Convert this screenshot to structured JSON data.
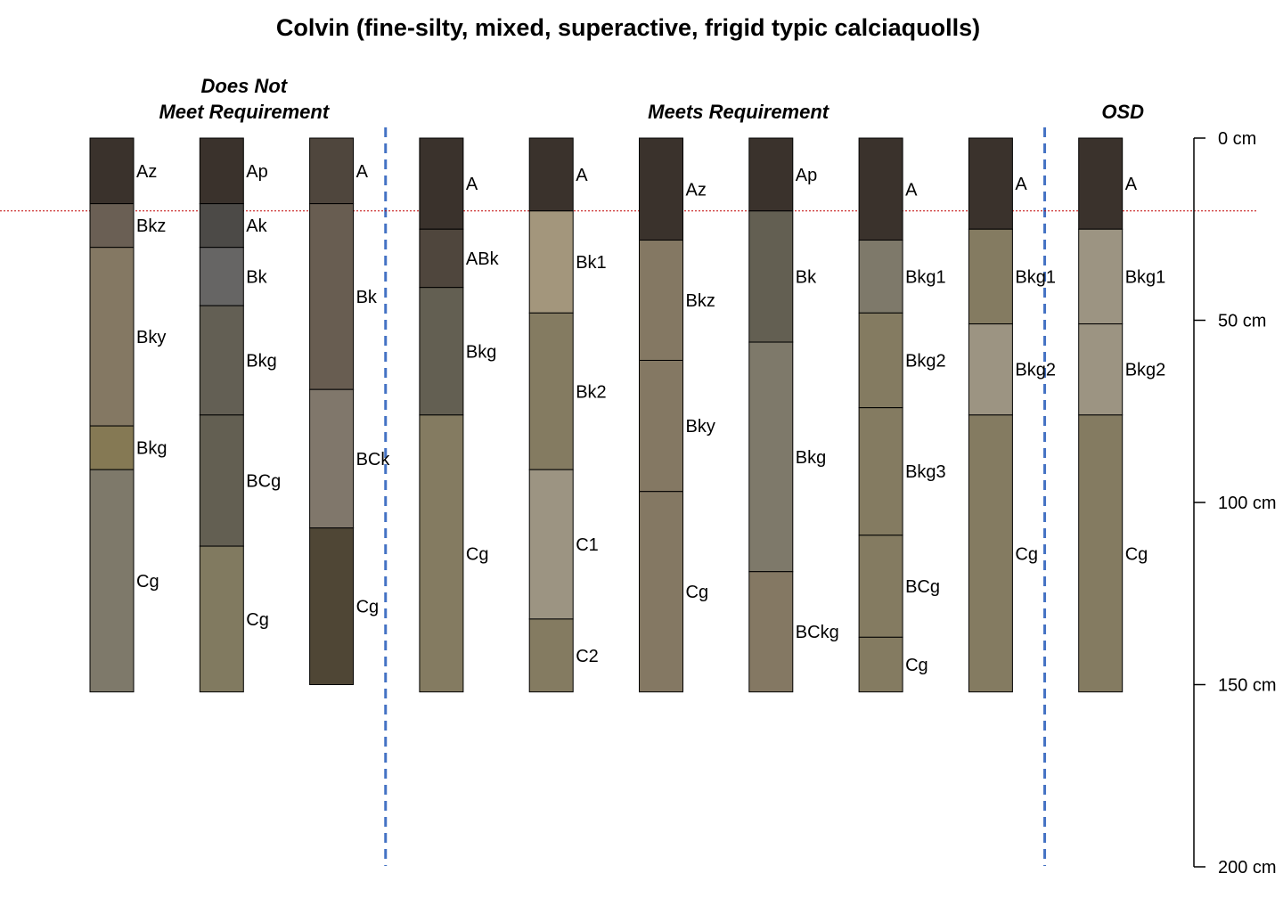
{
  "title": "Colvin (fine-silty, mixed, superactive, frigid typic calciaquolls)",
  "groups": [
    {
      "lines": [
        "Does Not",
        "Meet Requirement"
      ],
      "first": 0,
      "last": 2
    },
    {
      "lines": [
        "Meets Requirement"
      ],
      "first": 3,
      "last": 8
    },
    {
      "lines": [
        "OSD"
      ],
      "first": 9,
      "last": 9
    }
  ],
  "depth_axis": {
    "min_cm": 0,
    "max_cm": 200,
    "ticks": [
      {
        "value": 0,
        "label": "0 cm"
      },
      {
        "value": 50,
        "label": "50 cm"
      },
      {
        "value": 100,
        "label": "100 cm"
      },
      {
        "value": 150,
        "label": "150 cm"
      },
      {
        "value": 200,
        "label": "200 cm"
      }
    ]
  },
  "reference_depth_cm": 20,
  "colors": {
    "reference_line": "#c00000",
    "group_divider": "#4472c4",
    "border": "#000000"
  },
  "profiles": [
    {
      "horizons": [
        {
          "name": "Az",
          "top": 0,
          "bottom": 18,
          "color": "#3a322c"
        },
        {
          "name": "Bkz",
          "top": 18,
          "bottom": 30,
          "color": "#6a5f54"
        },
        {
          "name": "Bky",
          "top": 30,
          "bottom": 79,
          "color": "#847863"
        },
        {
          "name": "Bkg",
          "top": 79,
          "bottom": 91,
          "color": "#857954"
        },
        {
          "name": "Cg",
          "top": 91,
          "bottom": 152,
          "color": "#7e796a"
        }
      ]
    },
    {
      "horizons": [
        {
          "name": "Ap",
          "top": 0,
          "bottom": 18,
          "color": "#3a322c"
        },
        {
          "name": "Ak",
          "top": 18,
          "bottom": 30,
          "color": "#4c4a47"
        },
        {
          "name": "Bk",
          "top": 30,
          "bottom": 46,
          "color": "#666564"
        },
        {
          "name": "Bkg",
          "top": 46,
          "bottom": 76,
          "color": "#635f54"
        },
        {
          "name": "BCg",
          "top": 76,
          "bottom": 112,
          "color": "#635f52"
        },
        {
          "name": "Cg",
          "top": 112,
          "bottom": 152,
          "color": "#817a60"
        }
      ]
    },
    {
      "horizons": [
        {
          "name": "A",
          "top": 0,
          "bottom": 18,
          "color": "#4f463d"
        },
        {
          "name": "Bk",
          "top": 18,
          "bottom": 69,
          "color": "#685d51"
        },
        {
          "name": "BCk",
          "top": 69,
          "bottom": 107,
          "color": "#80776b"
        },
        {
          "name": "Cg",
          "top": 107,
          "bottom": 150,
          "color": "#4f4635"
        }
      ]
    },
    {
      "horizons": [
        {
          "name": "A",
          "top": 0,
          "bottom": 25,
          "color": "#3a322c"
        },
        {
          "name": "ABk",
          "top": 25,
          "bottom": 41,
          "color": "#4f463d"
        },
        {
          "name": "Bkg",
          "top": 41,
          "bottom": 76,
          "color": "#635f52"
        },
        {
          "name": "Cg",
          "top": 76,
          "bottom": 152,
          "color": "#847b61"
        }
      ]
    },
    {
      "horizons": [
        {
          "name": "A",
          "top": 0,
          "bottom": 20,
          "color": "#3a322c"
        },
        {
          "name": "Bk1",
          "top": 20,
          "bottom": 48,
          "color": "#a3967c"
        },
        {
          "name": "Bk2",
          "top": 48,
          "bottom": 91,
          "color": "#847b61"
        },
        {
          "name": "C1",
          "top": 91,
          "bottom": 132,
          "color": "#9c9482"
        },
        {
          "name": "C2",
          "top": 132,
          "bottom": 152,
          "color": "#847b61"
        }
      ]
    },
    {
      "horizons": [
        {
          "name": "Az",
          "top": 0,
          "bottom": 28,
          "color": "#3a322c"
        },
        {
          "name": "Bkz",
          "top": 28,
          "bottom": 61,
          "color": "#847863"
        },
        {
          "name": "Bky",
          "top": 61,
          "bottom": 97,
          "color": "#847863"
        },
        {
          "name": "Cg",
          "top": 97,
          "bottom": 152,
          "color": "#847863"
        }
      ]
    },
    {
      "horizons": [
        {
          "name": "Ap",
          "top": 0,
          "bottom": 20,
          "color": "#3a322c"
        },
        {
          "name": "Bk",
          "top": 20,
          "bottom": 56,
          "color": "#635f52"
        },
        {
          "name": "Bkg",
          "top": 56,
          "bottom": 119,
          "color": "#7e796a"
        },
        {
          "name": "BCkg",
          "top": 119,
          "bottom": 152,
          "color": "#847863"
        }
      ]
    },
    {
      "horizons": [
        {
          "name": "A",
          "top": 0,
          "bottom": 28,
          "color": "#3a322c"
        },
        {
          "name": "Bkg1",
          "top": 28,
          "bottom": 48,
          "color": "#7e796a"
        },
        {
          "name": "Bkg2",
          "top": 48,
          "bottom": 74,
          "color": "#847b61"
        },
        {
          "name": "Bkg3",
          "top": 74,
          "bottom": 109,
          "color": "#847b61"
        },
        {
          "name": "BCg",
          "top": 109,
          "bottom": 137,
          "color": "#847b61"
        },
        {
          "name": "Cg",
          "top": 137,
          "bottom": 152,
          "color": "#847b61"
        }
      ]
    },
    {
      "horizons": [
        {
          "name": "A",
          "top": 0,
          "bottom": 25,
          "color": "#3a322c"
        },
        {
          "name": "Bkg1",
          "top": 25,
          "bottom": 51,
          "color": "#847b61"
        },
        {
          "name": "Bkg2",
          "top": 51,
          "bottom": 76,
          "color": "#9c9482"
        },
        {
          "name": "Cg",
          "top": 76,
          "bottom": 152,
          "color": "#847b61"
        }
      ]
    },
    {
      "horizons": [
        {
          "name": "A",
          "top": 0,
          "bottom": 25,
          "color": "#3a322c"
        },
        {
          "name": "Bkg1",
          "top": 25,
          "bottom": 51,
          "color": "#9c9482"
        },
        {
          "name": "Bkg2",
          "top": 51,
          "bottom": 76,
          "color": "#9c9482"
        },
        {
          "name": "Cg",
          "top": 76,
          "bottom": 152,
          "color": "#847b61"
        }
      ]
    }
  ]
}
